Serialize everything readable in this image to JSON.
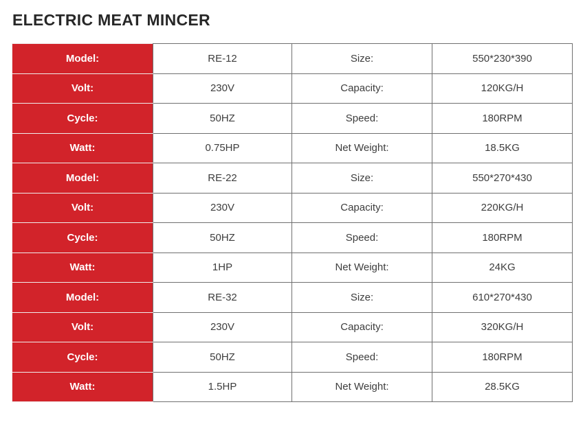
{
  "title": "ELECTRIC MEAT MINCER",
  "colors": {
    "accent_red": "#d2232a",
    "grid_border": "#6f6f6f",
    "label_text": "#ffffff",
    "value_text": "#3d3d3d",
    "title_text": "#272727"
  },
  "spec_table": {
    "rows": [
      {
        "c": [
          "Model:",
          "RE-12",
          "Size:",
          "550*230*390"
        ]
      },
      {
        "c": [
          "Volt:",
          "230V",
          "Capacity:",
          "120KG/H"
        ]
      },
      {
        "c": [
          "Cycle:",
          "50HZ",
          "Speed:",
          "180RPM"
        ]
      },
      {
        "c": [
          "Watt:",
          "0.75HP",
          "Net Weight:",
          "18.5KG"
        ]
      },
      {
        "c": [
          "Model:",
          "RE-22",
          "Size:",
          "550*270*430"
        ]
      },
      {
        "c": [
          "Volt:",
          "230V",
          "Capacity:",
          "220KG/H"
        ]
      },
      {
        "c": [
          "Cycle:",
          "50HZ",
          "Speed:",
          "180RPM"
        ]
      },
      {
        "c": [
          "Watt:",
          "1HP",
          "Net Weight:",
          "24KG"
        ]
      },
      {
        "c": [
          "Model:",
          "RE-32",
          "Size:",
          "610*270*430"
        ]
      },
      {
        "c": [
          "Volt:",
          "230V",
          "Capacity:",
          "320KG/H"
        ]
      },
      {
        "c": [
          "Cycle:",
          "50HZ",
          "Speed:",
          "180RPM"
        ]
      },
      {
        "c": [
          "Watt:",
          "1.5HP",
          "Net Weight:",
          "28.5KG"
        ]
      }
    ]
  }
}
